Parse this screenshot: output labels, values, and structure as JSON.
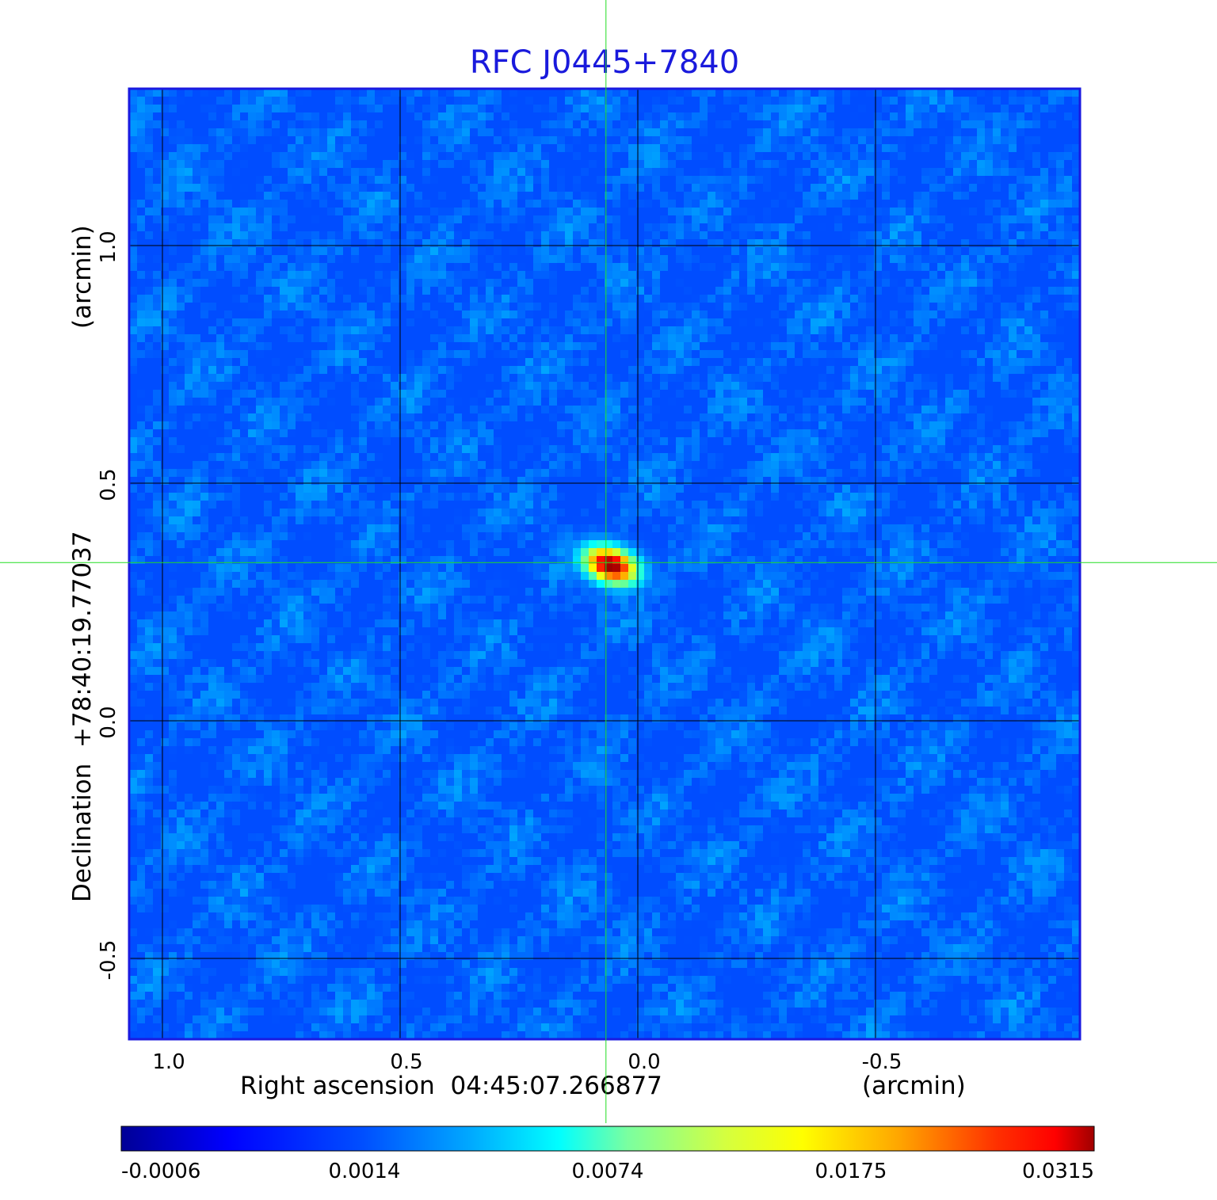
{
  "chart_data": {
    "type": "heatmap",
    "title": "RFC J0445+7840",
    "xlabel": "Right ascension  04:45:07.266877",
    "xunit": "(arcmin)",
    "ylabel": "Declination  +78:40:19.77037",
    "yunit": "(arcmin)",
    "xlim": [
      1.07,
      -0.93
    ],
    "ylim": [
      -0.67,
      1.33
    ],
    "x_ticks": [
      {
        "value": 1.0,
        "label": "1.0"
      },
      {
        "value": 0.5,
        "label": "0.5"
      },
      {
        "value": 0.0,
        "label": "0.0"
      },
      {
        "value": -0.5,
        "label": "-0.5"
      }
    ],
    "y_ticks": [
      {
        "value": 1.0,
        "label": "1.0"
      },
      {
        "value": 0.5,
        "label": "0.5"
      },
      {
        "value": 0.0,
        "label": "0.0"
      },
      {
        "value": -0.5,
        "label": "-0.5"
      }
    ],
    "grid": true,
    "crosshair": {
      "x": 0.067,
      "y": 0.333,
      "color": "#22dd22"
    },
    "source": {
      "x": 0.057,
      "y": 0.327,
      "peak": 0.0315
    },
    "colorbar": {
      "min": -0.0006,
      "max": 0.0315,
      "tick_labels": [
        "-0.0006",
        "0.0014",
        "0.0074",
        "0.0175",
        "0.0315"
      ],
      "colormap": "jet"
    },
    "colors": {
      "title": "#1a1adc",
      "frame": "#1a1ae0",
      "background": "#1e5af0"
    }
  }
}
